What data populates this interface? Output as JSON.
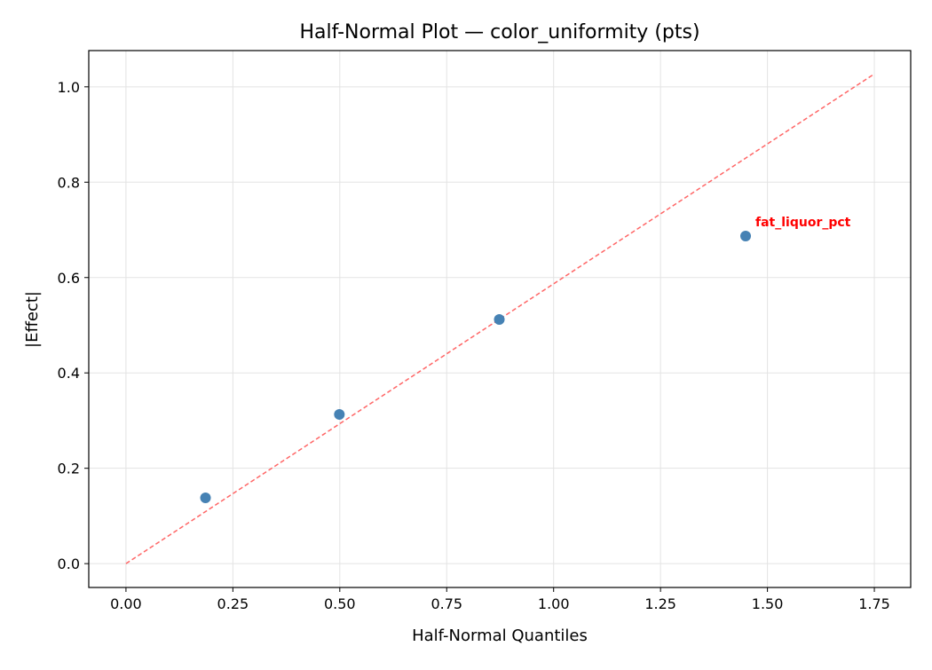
{
  "chart_data": {
    "type": "scatter",
    "title": "Half-Normal Plot — color_uniformity (pts)",
    "xlabel": "Half-Normal Quantiles",
    "ylabel": "|Effect|",
    "xlim": [
      -0.087,
      1.835
    ],
    "ylim": [
      -0.05,
      1.076
    ],
    "xticks": [
      0.0,
      0.25,
      0.5,
      0.75,
      1.0,
      1.25,
      1.5,
      1.75
    ],
    "xtick_labels": [
      "0.00",
      "0.25",
      "0.50",
      "0.75",
      "1.00",
      "1.25",
      "1.50",
      "1.75"
    ],
    "yticks": [
      0.0,
      0.2,
      0.4,
      0.6,
      0.8,
      1.0
    ],
    "ytick_labels": [
      "0.0",
      "0.2",
      "0.4",
      "0.6",
      "0.8",
      "1.0"
    ],
    "grid": true,
    "points": [
      {
        "x": 0.186,
        "y": 0.138
      },
      {
        "x": 0.499,
        "y": 0.313
      },
      {
        "x": 0.873,
        "y": 0.512
      },
      {
        "x": 1.449,
        "y": 0.687,
        "label": "fat_liquor_pct"
      }
    ],
    "reference_line": {
      "x": [
        0.0,
        1.75
      ],
      "y": [
        0.0,
        1.027
      ]
    },
    "colors": {
      "points": "#4682b4",
      "reference_line": "#ff6666",
      "annotation": "#ff0000"
    }
  }
}
